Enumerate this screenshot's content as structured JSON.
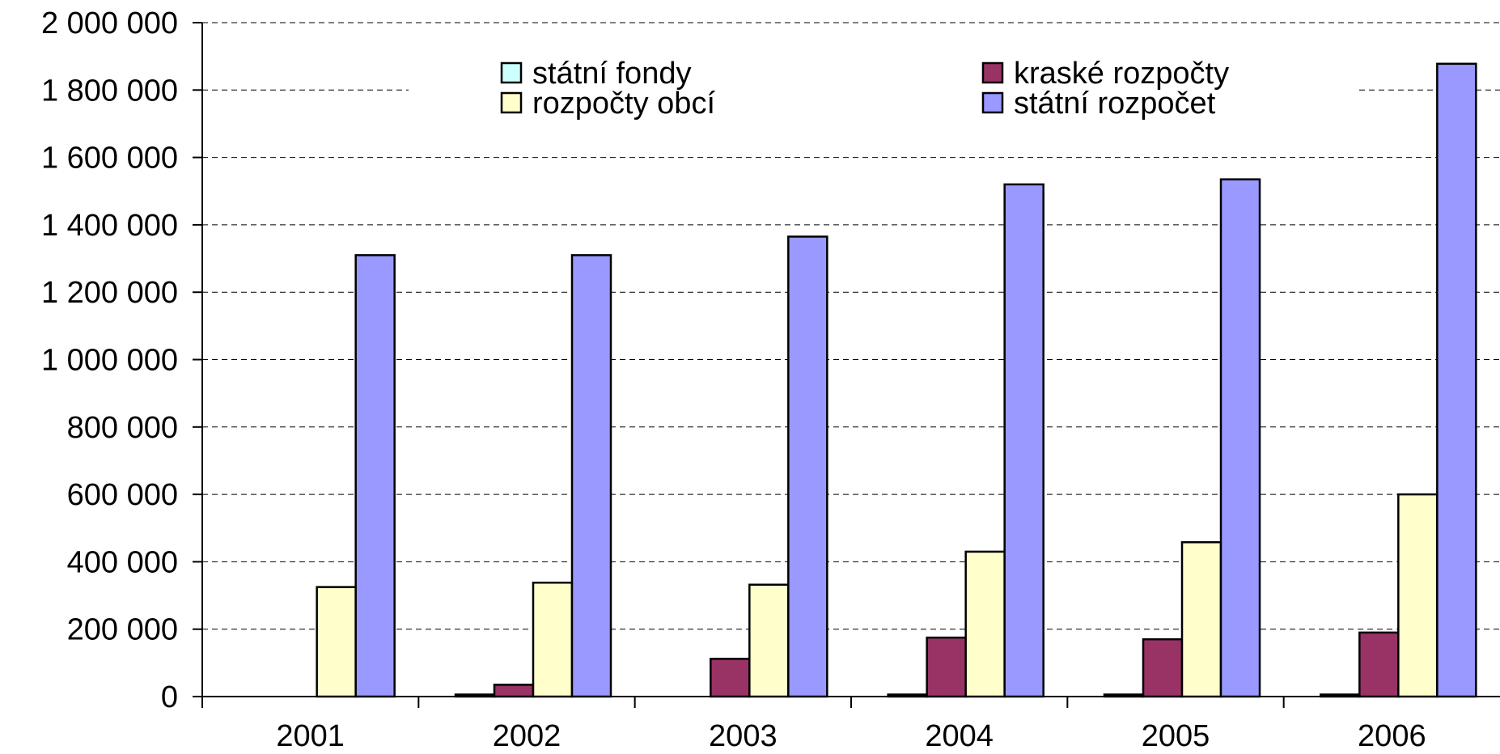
{
  "chart_data": {
    "type": "bar",
    "categories": [
      "2001",
      "2002",
      "2003",
      "2004",
      "2005",
      "2006"
    ],
    "series": [
      {
        "name": "státní fondy",
        "color": "#ccffff",
        "values": [
          0,
          6000,
          0,
          6000,
          6000,
          6000
        ]
      },
      {
        "name": "kraské rozpočty",
        "color": "#993366",
        "values": [
          0,
          35000,
          112000,
          175000,
          170000,
          190000
        ]
      },
      {
        "name": "rozpočty obcí",
        "color": "#ffffcc",
        "values": [
          325000,
          338000,
          332000,
          430000,
          458000,
          600000
        ]
      },
      {
        "name": "státní rozpočet",
        "color": "#9999ff",
        "values": [
          1310000,
          1310000,
          1365000,
          1520000,
          1535000,
          1878000
        ]
      }
    ],
    "y_ticks": [
      "0",
      "200 000",
      "400 000",
      "600 000",
      "800 000",
      "1 000 000",
      "1 200 000",
      "1 400 000",
      "1 600 000",
      "1 800 000",
      "2 000 000"
    ],
    "ylim": [
      0,
      2000000
    ],
    "grid": true,
    "legend_position": "top"
  }
}
